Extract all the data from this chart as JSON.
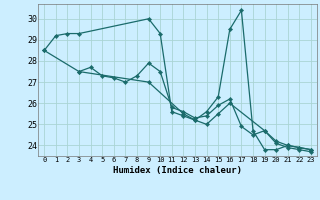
{
  "xlabel": "Humidex (Indice chaleur)",
  "bg_color": "#cceeff",
  "line_color": "#1a6b6b",
  "grid_color": "#aad4d4",
  "xlim": [
    -0.5,
    23.5
  ],
  "ylim": [
    23.5,
    30.7
  ],
  "yticks": [
    24,
    25,
    26,
    27,
    28,
    29,
    30
  ],
  "xticks": [
    0,
    1,
    2,
    3,
    4,
    5,
    6,
    7,
    8,
    9,
    10,
    11,
    12,
    13,
    14,
    15,
    16,
    17,
    18,
    19,
    20,
    21,
    22,
    23
  ],
  "series": [
    {
      "x": [
        0,
        1,
        2,
        3,
        9,
        10,
        11,
        12,
        13,
        14,
        15,
        16,
        17,
        18,
        19,
        20,
        21,
        22,
        23
      ],
      "y": [
        28.5,
        29.2,
        29.3,
        29.3,
        30.0,
        29.3,
        25.6,
        25.4,
        25.2,
        25.6,
        26.3,
        29.5,
        30.4,
        24.7,
        23.8,
        23.8,
        24.0,
        23.9,
        23.8
      ]
    },
    {
      "x": [
        3,
        4,
        5,
        6,
        7,
        8,
        9,
        10,
        11,
        12,
        13,
        14,
        15,
        16,
        17,
        18,
        19,
        20,
        21,
        22,
        23
      ],
      "y": [
        27.5,
        27.7,
        27.3,
        27.2,
        27.0,
        27.3,
        27.9,
        27.5,
        25.8,
        25.6,
        25.3,
        25.4,
        25.9,
        26.2,
        24.9,
        24.5,
        24.7,
        24.2,
        24.0,
        23.9,
        23.8
      ]
    },
    {
      "x": [
        0,
        3,
        9,
        12,
        13,
        14,
        15,
        16,
        19,
        20,
        21,
        22,
        23
      ],
      "y": [
        28.5,
        27.5,
        27.0,
        25.5,
        25.2,
        25.0,
        25.5,
        26.0,
        24.7,
        24.1,
        23.9,
        23.8,
        23.7
      ]
    }
  ]
}
